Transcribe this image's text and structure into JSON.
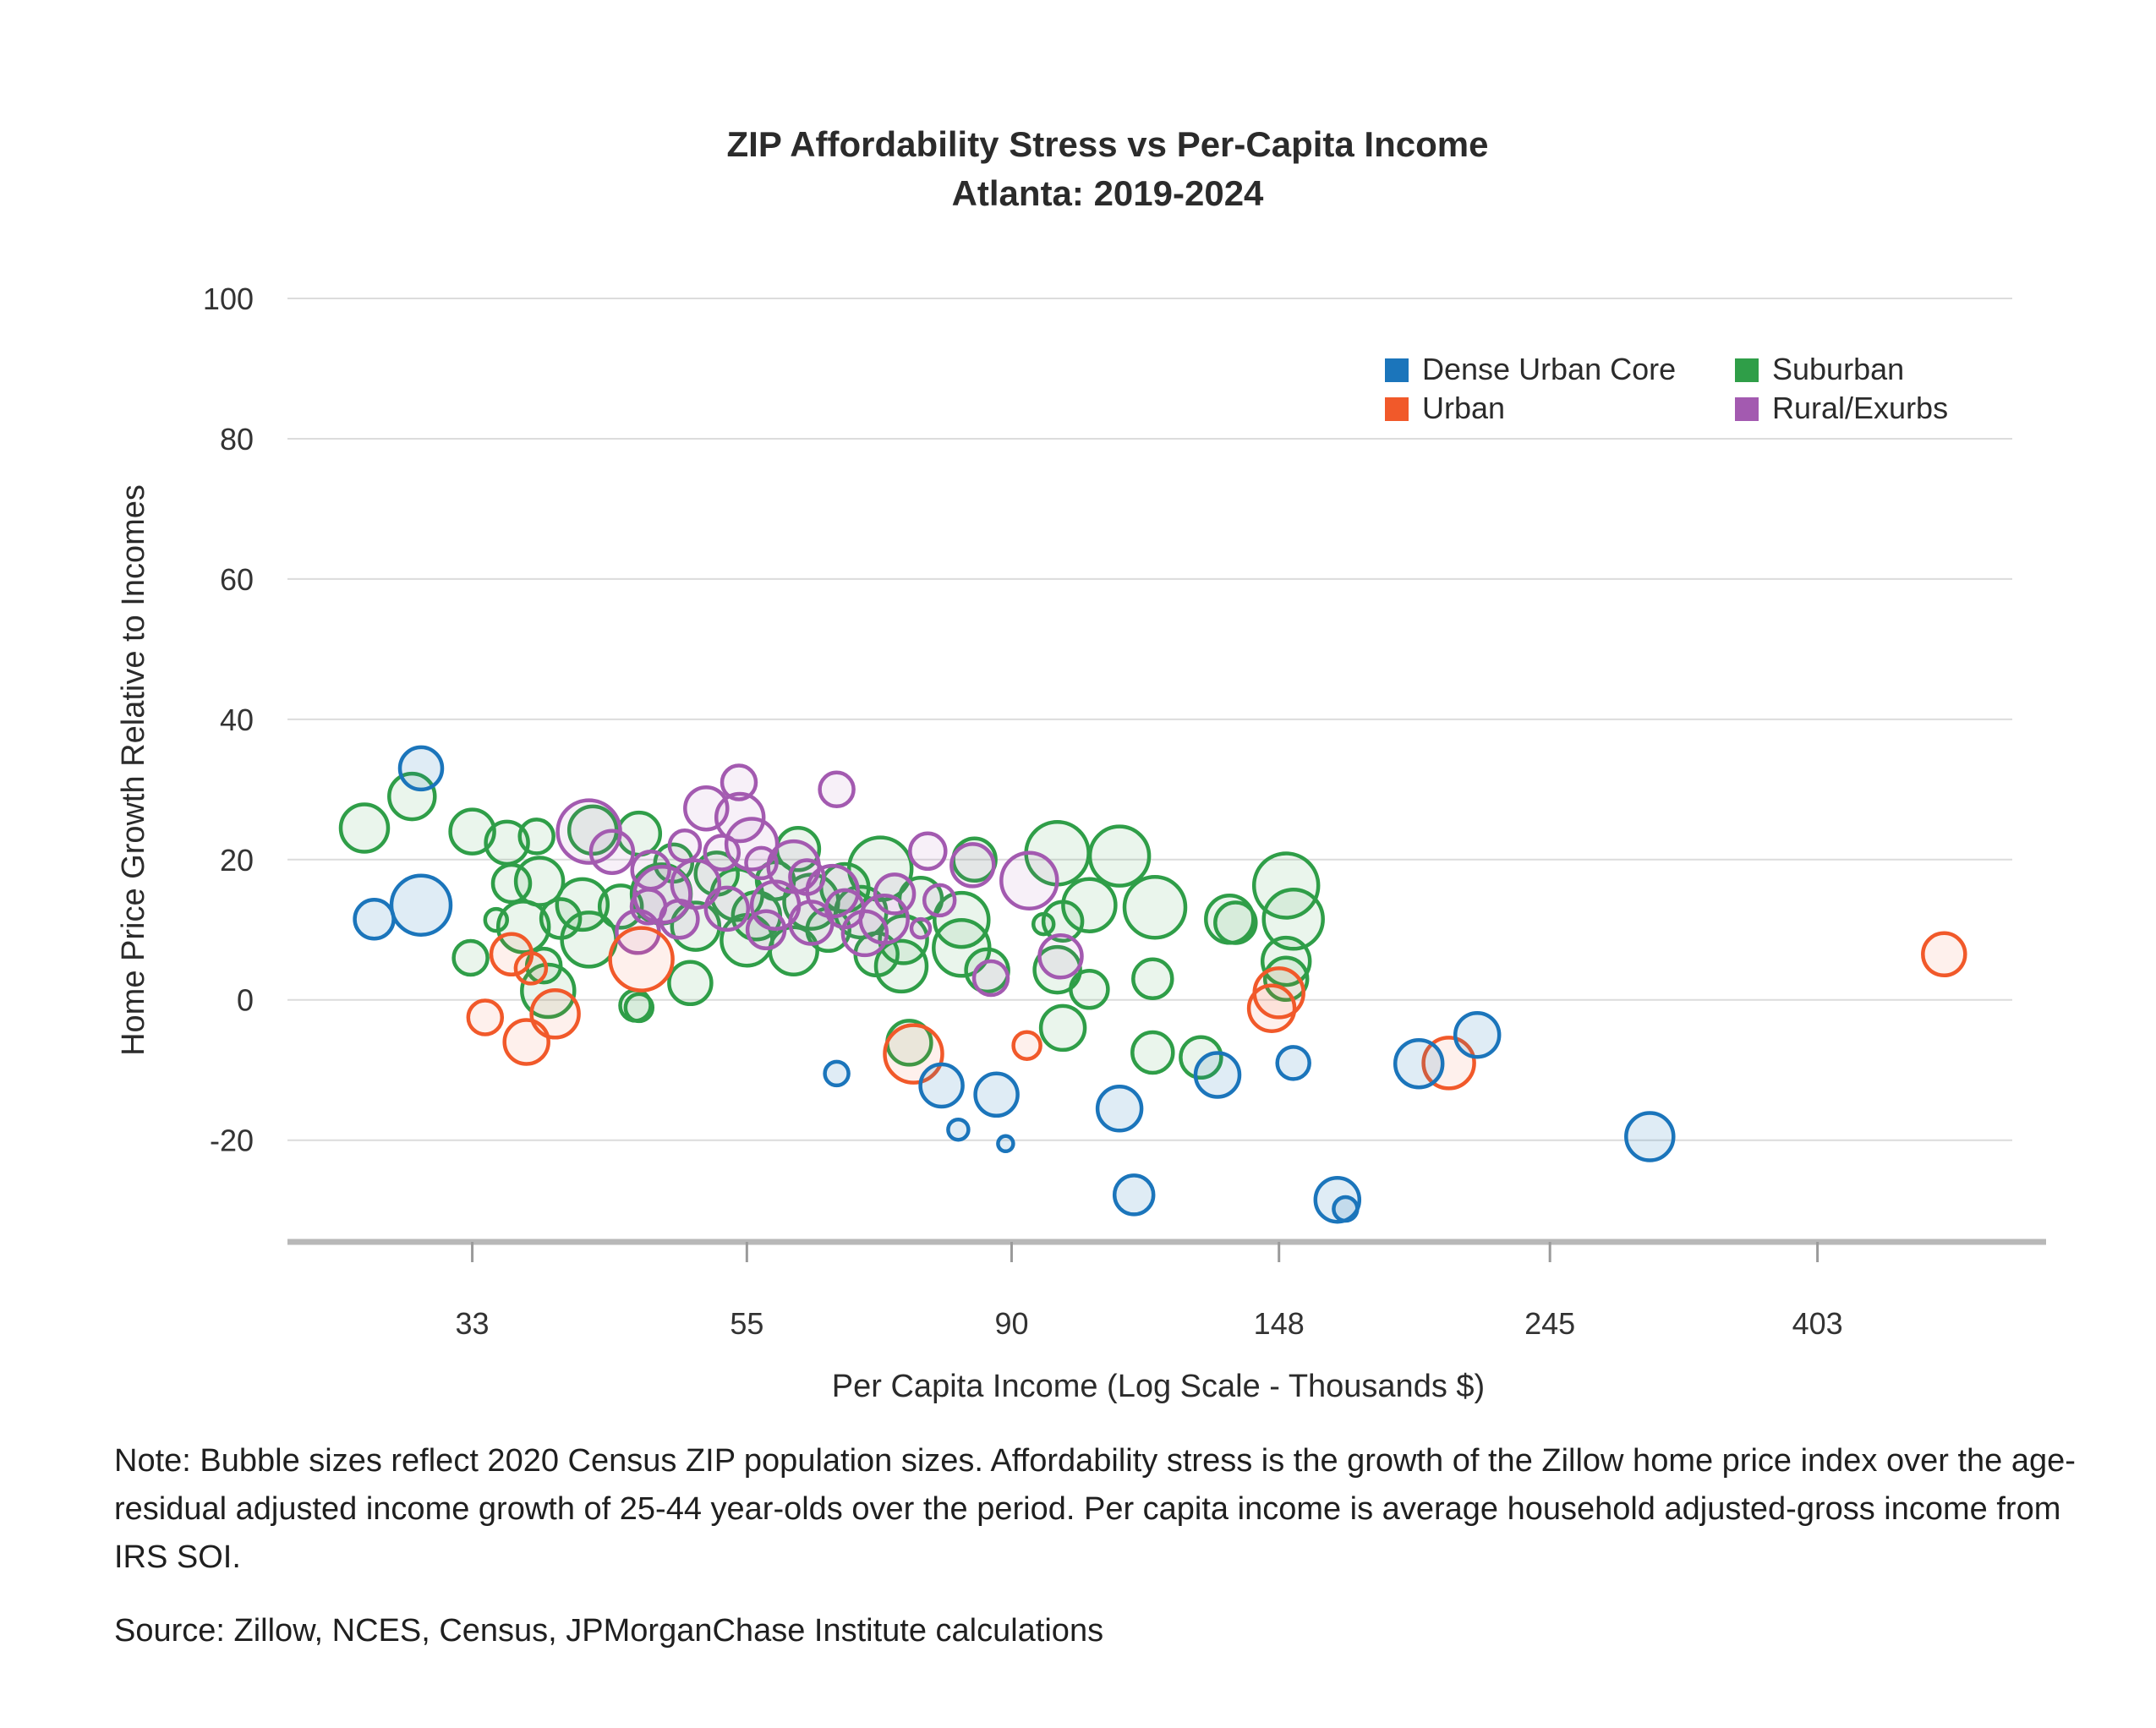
{
  "title": {
    "line1": "ZIP Affordability Stress vs Per-Capita Income",
    "line2": "Atlanta: 2019-2024"
  },
  "axes": {
    "x": {
      "label": "Per Capita Income (Log Scale - Thousands $)"
    },
    "y": {
      "label": "Home Price Growth Relative to Incomes"
    }
  },
  "legend": {
    "columns": 2,
    "items": [
      {
        "key": "duc",
        "label": "Dense Urban Core",
        "color": "#1b75bb"
      },
      {
        "key": "urban",
        "label": "Urban",
        "color": "#f1592a"
      },
      {
        "key": "suburban",
        "label": "Suburban",
        "color": "#2f9e48"
      },
      {
        "key": "rural",
        "label": "Rural/Exurbs",
        "color": "#a35ab0"
      }
    ]
  },
  "note": "Note: Bubble sizes reflect 2020 Census ZIP population sizes. Affordability stress is the growth of the Zillow home price index over the age-residual adjusted income growth of 25-44 year-olds over the period. Per capita income is average household adjusted-gross income from IRS SOI.",
  "source": "Source: Zillow, NCES, Census, JPMorganChase Institute calculations",
  "chart_data": {
    "type": "scatter",
    "title": "ZIP Affordability Stress vs Per-Capita Income — Atlanta: 2019-2024",
    "xlabel": "Per Capita Income (Log Scale - Thousands $)",
    "ylabel": "Home Price Growth Relative to Incomes",
    "xscale": "log",
    "xlim": [
      23.4,
      579
    ],
    "ylim": [
      -34.5,
      100
    ],
    "x_ticks": [
      33,
      55,
      90,
      148,
      245,
      403
    ],
    "y_ticks": [
      100,
      80,
      60,
      40,
      20,
      0,
      -20
    ],
    "grid": "horizontal",
    "legend_position": "top-right",
    "bubble_meaning": "Bubble size reflects 2020 Census ZIP population size",
    "point_format": [
      "per_capita_income_thousands",
      "home_price_growth_relative_pct",
      "bubble_radius_px"
    ],
    "series": [
      {
        "name": "Suburban",
        "key": "suburban",
        "color": "#2f9e48",
        "fill_opacity": 0.1,
        "points": [
          [
            27,
            24.5,
            28
          ],
          [
            29.5,
            29,
            27
          ],
          [
            33,
            24,
            26
          ],
          [
            35.2,
            22.4,
            25
          ],
          [
            37.2,
            23.3,
            20
          ],
          [
            45,
            23.7,
            25
          ],
          [
            41.3,
            24.2,
            28
          ],
          [
            35.5,
            16.6,
            22
          ],
          [
            37.4,
            16.9,
            28
          ],
          [
            40.5,
            13.6,
            30
          ],
          [
            43.5,
            13.3,
            25
          ],
          [
            46.9,
            15.1,
            35
          ],
          [
            38.9,
            11.6,
            23
          ],
          [
            36.3,
            10.4,
            30
          ],
          [
            41,
            8.6,
            32
          ],
          [
            37.7,
            4.9,
            20
          ],
          [
            32.9,
            6,
            20
          ],
          [
            34.5,
            11.4,
            13
          ],
          [
            38,
            1.3,
            31
          ],
          [
            45,
            -1.1,
            16
          ],
          [
            49.5,
            2.4,
            25
          ],
          [
            44.7,
            -0.8,
            18
          ],
          [
            52,
            18,
            25
          ],
          [
            54,
            15,
            30
          ],
          [
            56,
            12,
            28
          ],
          [
            58,
            17,
            22
          ],
          [
            60.5,
            21.5,
            25
          ],
          [
            62,
            14,
            32
          ],
          [
            64,
            10,
            25
          ],
          [
            66,
            16,
            28
          ],
          [
            68,
            12.5,
            30
          ],
          [
            70.5,
            18.7,
            37
          ],
          [
            73.6,
            8.6,
            28
          ],
          [
            73.3,
            4.8,
            30
          ],
          [
            70,
            6.5,
            25
          ],
          [
            60,
            7,
            28
          ],
          [
            55,
            8.5,
            30
          ],
          [
            50,
            10.5,
            28
          ],
          [
            48,
            19.5,
            22
          ],
          [
            76,
            14.4,
            25
          ],
          [
            82,
            11.4,
            32
          ],
          [
            82,
            7.4,
            33
          ],
          [
            86,
            4.2,
            25
          ],
          [
            98,
            4.3,
            27
          ],
          [
            99,
            11.2,
            23
          ],
          [
            95.5,
            10.8,
            12
          ],
          [
            98,
            20.9,
            37
          ],
          [
            84,
            20,
            25
          ],
          [
            104,
            13.5,
            31
          ],
          [
            110,
            20.5,
            35
          ],
          [
            117.5,
            13.2,
            36
          ],
          [
            117,
            3,
            23
          ],
          [
            99,
            -4,
            26
          ],
          [
            117,
            -7.5,
            24
          ],
          [
            128,
            -8.2,
            24
          ],
          [
            135,
            11.5,
            28
          ],
          [
            136.5,
            11,
            24
          ],
          [
            150,
            16.3,
            38
          ],
          [
            152,
            11.5,
            35
          ],
          [
            150,
            5.5,
            28
          ],
          [
            150,
            3,
            25
          ],
          [
            74.4,
            -6.1,
            26
          ],
          [
            104,
            1.5,
            22
          ]
        ]
      },
      {
        "name": "Rural/Exurbs",
        "key": "rural",
        "color": "#a35ab0",
        "fill_opacity": 0.09,
        "points": [
          [
            54.2,
            31,
            20
          ],
          [
            65,
            30,
            20
          ],
          [
            54.3,
            26,
            28
          ],
          [
            51,
            27.3,
            25
          ],
          [
            55.5,
            22.2,
            30
          ],
          [
            41,
            24,
            37
          ],
          [
            42.8,
            21.1,
            25
          ],
          [
            45.8,
            13.3,
            20
          ],
          [
            44.9,
            9.7,
            25
          ],
          [
            47,
            15,
            33
          ],
          [
            77,
            21.2,
            21
          ],
          [
            83.7,
            19.2,
            25
          ],
          [
            93,
            17,
            33
          ],
          [
            72.4,
            15.1,
            23
          ],
          [
            78.7,
            14.2,
            18
          ],
          [
            76,
            10.2,
            11
          ],
          [
            98.6,
            6.2,
            25
          ],
          [
            86.6,
            3.1,
            20
          ],
          [
            60,
            19,
            30
          ],
          [
            58,
            13.5,
            28
          ],
          [
            62,
            11,
            25
          ],
          [
            64.5,
            15.5,
            30
          ],
          [
            66,
            13,
            22
          ],
          [
            68.5,
            9.5,
            26
          ],
          [
            57,
            10,
            22
          ],
          [
            53,
            13,
            25
          ],
          [
            50,
            16.5,
            28
          ],
          [
            48.5,
            11.5,
            22
          ],
          [
            71,
            11.5,
            28
          ],
          [
            61.5,
            17.5,
            20
          ],
          [
            56.5,
            19.5,
            18
          ],
          [
            46,
            18.5,
            22
          ],
          [
            52.5,
            21,
            20
          ],
          [
            49,
            22,
            18
          ]
        ]
      },
      {
        "name": "Urban",
        "key": "urban",
        "color": "#f1592a",
        "fill_opacity": 0.09,
        "points": [
          [
            35.5,
            6.5,
            24
          ],
          [
            36.8,
            4.5,
            18
          ],
          [
            33.8,
            -2.5,
            20
          ],
          [
            36.5,
            -6,
            26
          ],
          [
            38.5,
            -2,
            28
          ],
          [
            45.2,
            5.8,
            37
          ],
          [
            75,
            -7.7,
            34
          ],
          [
            92.6,
            -6.5,
            16
          ],
          [
            148,
            1,
            29
          ],
          [
            146,
            -1.2,
            27
          ],
          [
            203,
            -9,
            30
          ],
          [
            510,
            6.5,
            25
          ]
        ]
      },
      {
        "name": "Dense Urban Core",
        "key": "duc",
        "color": "#1b75bb",
        "fill_opacity": 0.14,
        "points": [
          [
            30,
            33,
            25
          ],
          [
            30,
            13.5,
            35
          ],
          [
            27.5,
            11.5,
            23
          ],
          [
            65,
            -10.5,
            14
          ],
          [
            79,
            -12.2,
            25
          ],
          [
            87.5,
            -13.5,
            25
          ],
          [
            89,
            -20.5,
            9
          ],
          [
            81.5,
            -18.5,
            12
          ],
          [
            110,
            -15.5,
            26
          ],
          [
            132,
            -10.7,
            26
          ],
          [
            152,
            -9,
            19
          ],
          [
            113,
            -27.8,
            23
          ],
          [
            165,
            -28.5,
            26
          ],
          [
            167.5,
            -29.8,
            14
          ],
          [
            192,
            -9.1,
            28
          ],
          [
            214,
            -5,
            26
          ],
          [
            295,
            -19.5,
            28
          ]
        ]
      }
    ]
  }
}
